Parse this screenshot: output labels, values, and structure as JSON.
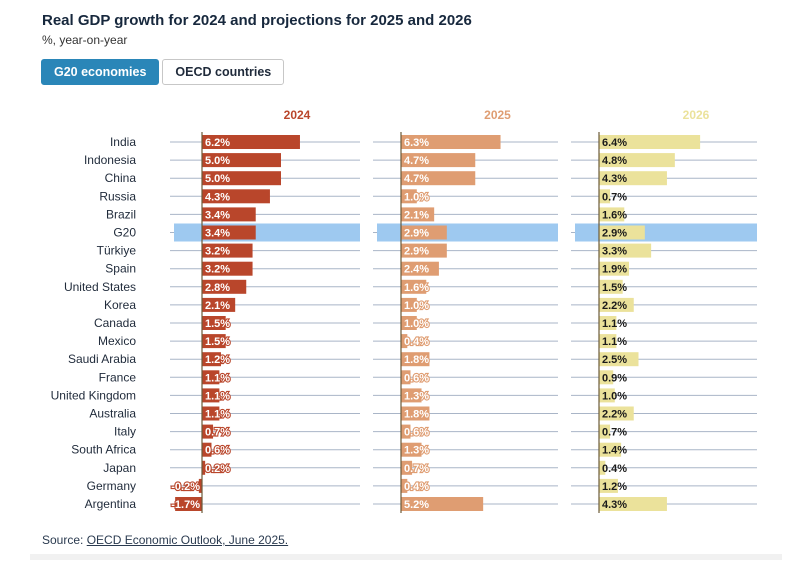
{
  "title": "Real GDP growth for 2024 and projections for 2025 and 2026",
  "subtitle": "%, year-on-year",
  "tabs": [
    {
      "label": "G20 economies",
      "active": true
    },
    {
      "label": "OECD countries",
      "active": false
    }
  ],
  "source": {
    "prefix": "Source: ",
    "link_text": "OECD Economic Outlook, June 2025."
  },
  "colors": {
    "y2024": "#b9462b",
    "y2025": "#df9d72",
    "y2026": "#ebe29b",
    "highlight": "#9ec9f0",
    "grid": "#a9b5c7"
  },
  "chart_data": {
    "type": "bar",
    "highlight_category": "G20",
    "categories": [
      "India",
      "Indonesia",
      "China",
      "Russia",
      "Brazil",
      "G20",
      "Türkiye",
      "Spain",
      "United States",
      "Korea",
      "Canada",
      "Mexico",
      "Saudi Arabia",
      "France",
      "United Kingdom",
      "Australia",
      "Italy",
      "South Africa",
      "Japan",
      "Germany",
      "Argentina"
    ],
    "series": [
      {
        "name": "2024",
        "values": [
          6.2,
          5.0,
          5.0,
          4.3,
          3.4,
          3.4,
          3.2,
          3.2,
          2.8,
          2.1,
          1.5,
          1.5,
          1.2,
          1.1,
          1.1,
          1.1,
          0.7,
          0.6,
          0.2,
          -0.2,
          -1.7
        ],
        "labels": [
          "6.2%",
          "5.0%",
          "5.0%",
          "4.3%",
          "3.4%",
          "3.4%",
          "3.2%",
          "3.2%",
          "2.8%",
          "2.1%",
          "1.5%",
          "1.5%",
          "1.2%",
          "1.1%",
          "1.1%",
          "1.1%",
          "0.7%",
          "0.6%",
          "0.2%",
          "-0.2%",
          "-1.7%"
        ]
      },
      {
        "name": "2025",
        "values": [
          6.3,
          4.7,
          4.7,
          1.0,
          2.1,
          2.9,
          2.9,
          2.4,
          1.6,
          1.0,
          1.0,
          0.4,
          1.8,
          0.6,
          1.3,
          1.8,
          0.6,
          1.3,
          0.7,
          0.4,
          5.2
        ],
        "labels": [
          "6.3%",
          "4.7%",
          "4.7%",
          "1.0%",
          "2.1%",
          "2.9%",
          "2.9%",
          "2.4%",
          "1.6%",
          "1.0%",
          "1.0%",
          "0.4%",
          "1.8%",
          "0.6%",
          "1.3%",
          "1.8%",
          "0.6%",
          "1.3%",
          "0.7%",
          "0.4%",
          "5.2%"
        ]
      },
      {
        "name": "2026",
        "values": [
          6.4,
          4.8,
          4.3,
          0.7,
          1.6,
          2.9,
          3.3,
          1.9,
          1.5,
          2.2,
          1.1,
          1.1,
          2.5,
          0.9,
          1.0,
          2.2,
          0.7,
          1.4,
          0.4,
          1.2,
          4.3
        ],
        "labels": [
          "6.4%",
          "4.8%",
          "4.3%",
          "0.7%",
          "1.6%",
          "2.9%",
          "3.3%",
          "1.9%",
          "1.5%",
          "2.2%",
          "1.1%",
          "1.1%",
          "2.5%",
          "0.9%",
          "1.0%",
          "2.2%",
          "0.7%",
          "1.4%",
          "0.4%",
          "1.2%",
          "4.3%"
        ]
      }
    ],
    "unit": "%"
  }
}
